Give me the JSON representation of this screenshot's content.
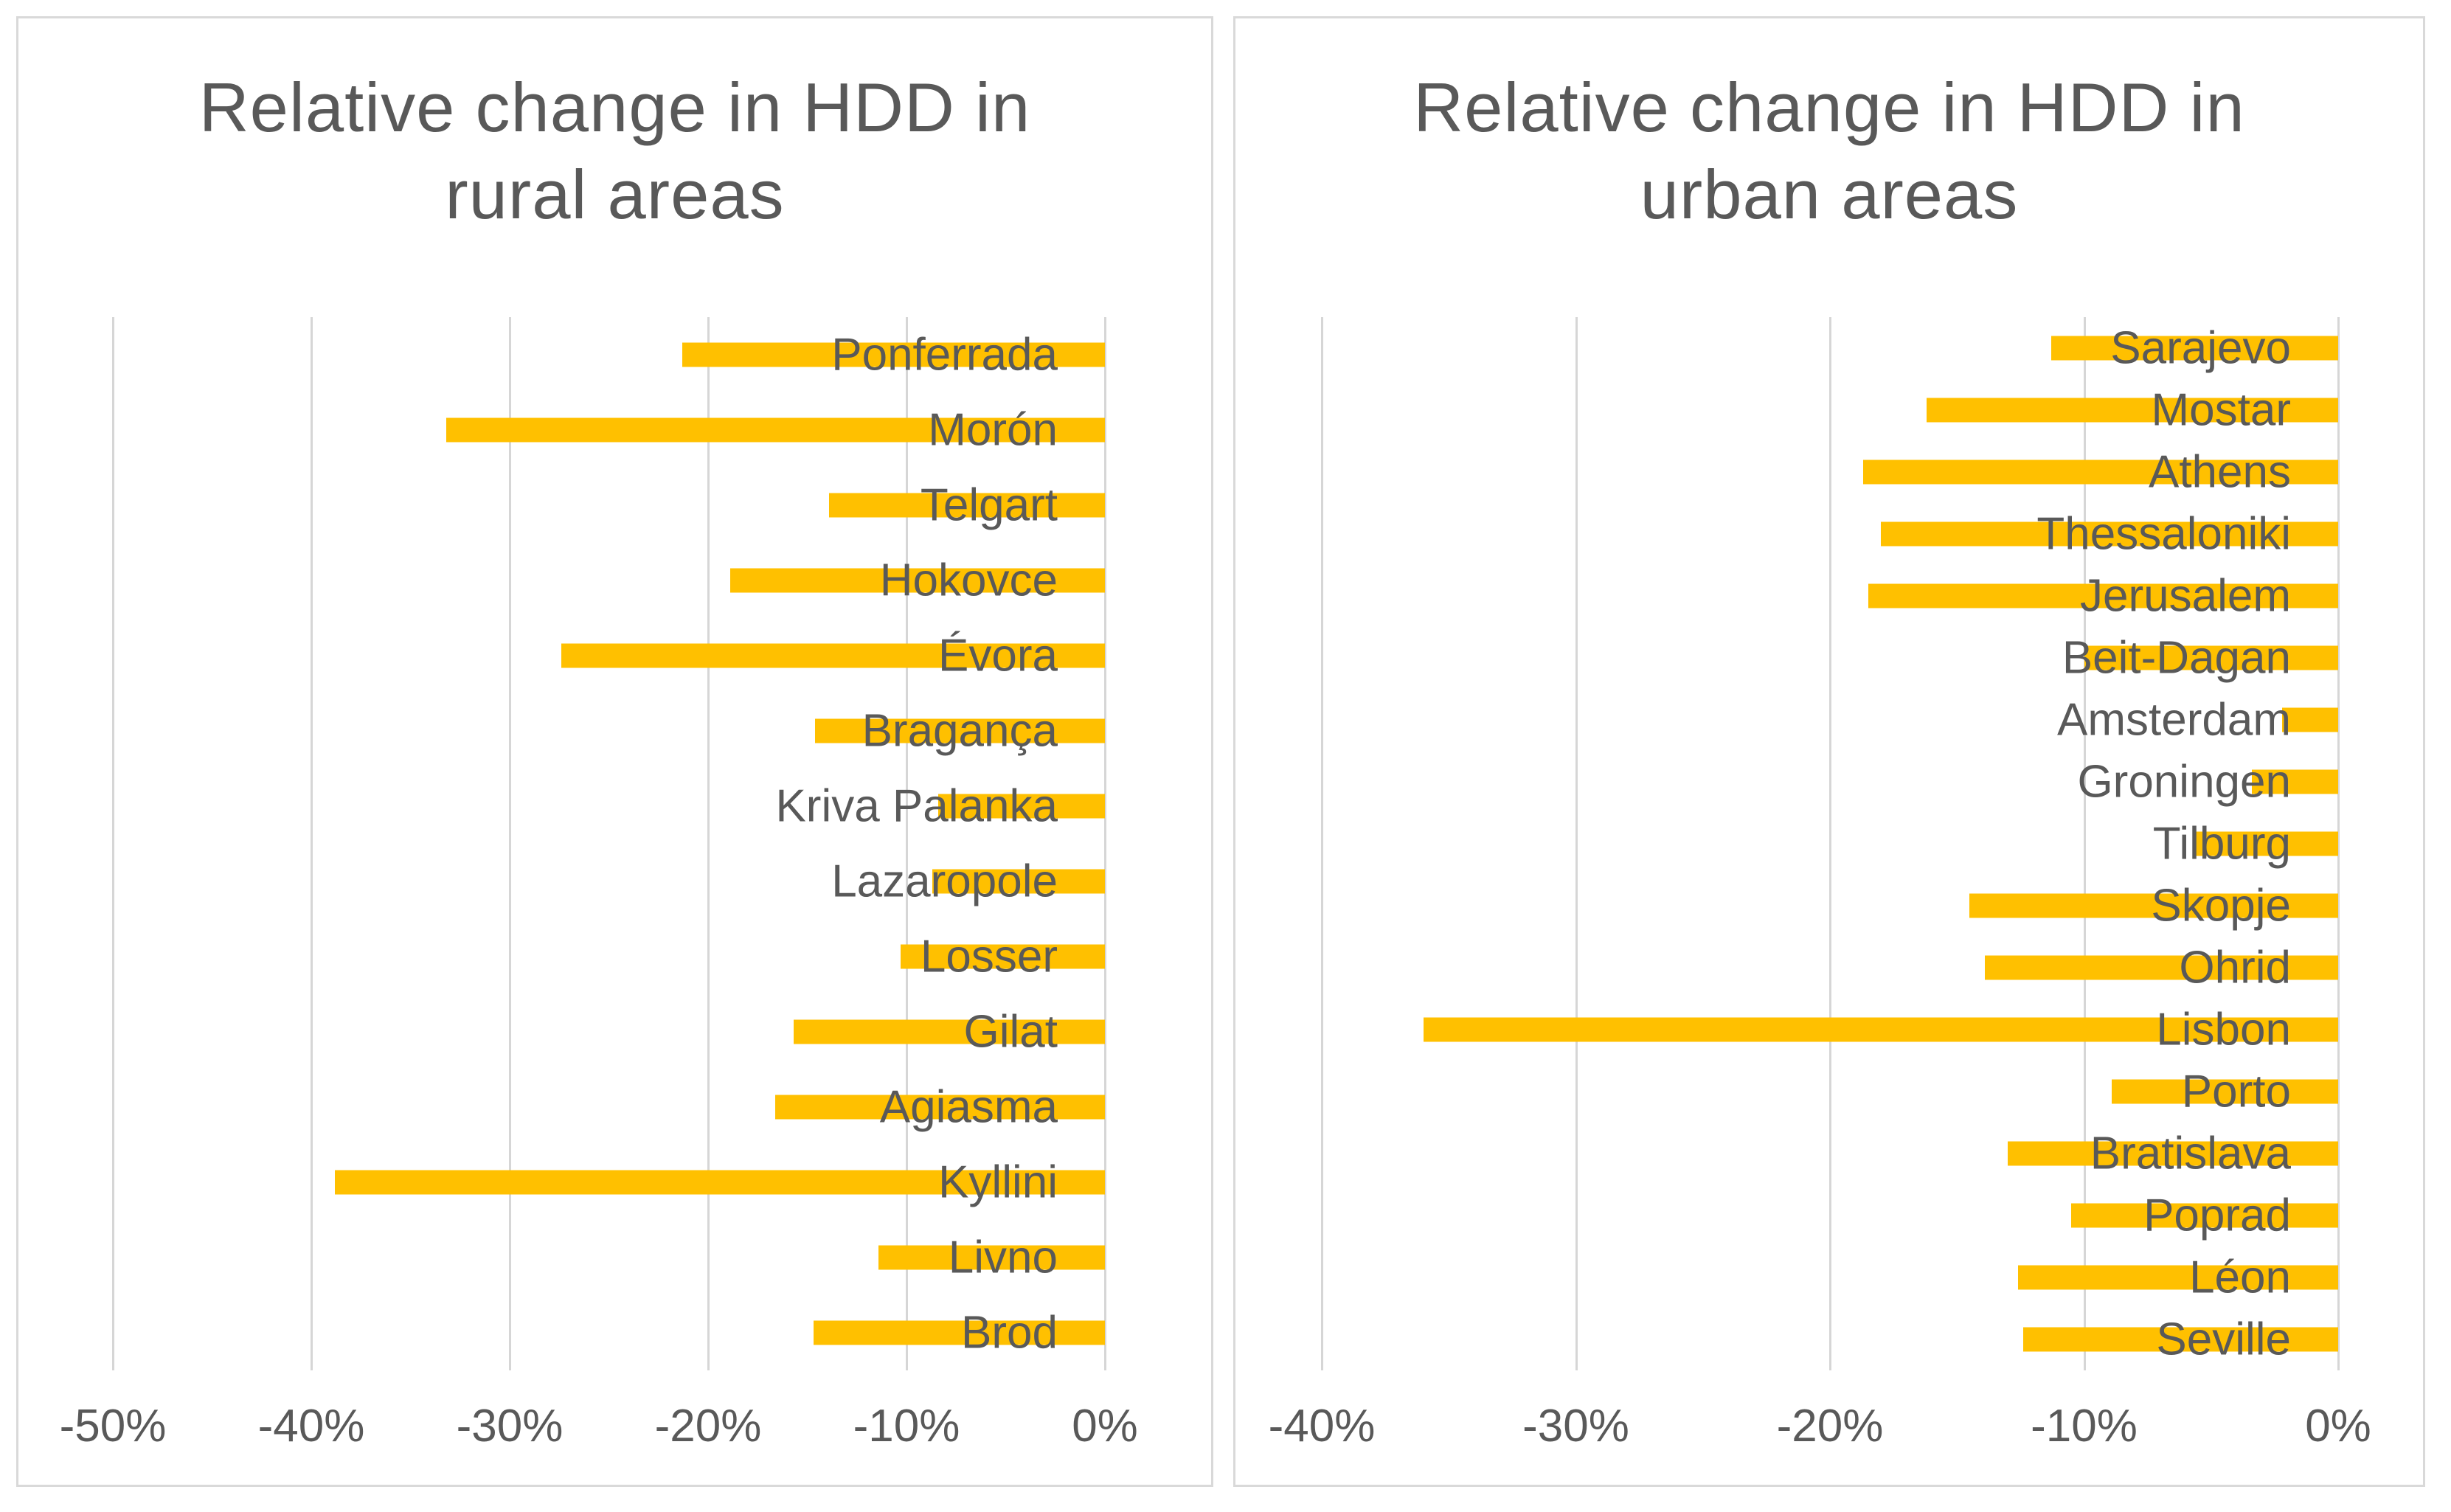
{
  "colors": {
    "bar": "#FFC000",
    "text": "#595959",
    "gridline": "#D6D6D6",
    "panel_border": "#D9D9D9",
    "background": "#FFFFFF"
  },
  "chart_data": [
    {
      "type": "bar",
      "orientation": "horizontal",
      "title": "Relative change in HDD in rural areas",
      "title_lines": [
        "Relative change in HDD in",
        "rural areas"
      ],
      "categories": [
        "Ponferrada",
        "Morón",
        "Telgart",
        "Hokovce",
        "Évora",
        "Bragança",
        "Kriva Palanka",
        "Lazaropole",
        "Losser",
        "Gilat",
        "Agiasma",
        "Kyllini",
        "Livno",
        "Brod"
      ],
      "values": [
        -21.3,
        -33.2,
        -13.9,
        -18.9,
        -27.4,
        -14.6,
        -8.4,
        -8.7,
        -10.3,
        -15.7,
        -16.6,
        -38.8,
        -11.4,
        -14.7
      ],
      "unit": "%",
      "xlabel": "",
      "ylabel": "",
      "xlim": [
        -50,
        0
      ],
      "x_ticks": [
        -50,
        -40,
        -30,
        -20,
        -10,
        0
      ],
      "x_tick_labels": [
        "-50%",
        "-40%",
        "-30%",
        "-20%",
        "-10%",
        "0%"
      ],
      "grid": true,
      "legend": false,
      "bar_color": "#FFC000"
    },
    {
      "type": "bar",
      "orientation": "horizontal",
      "title": "Relative change in HDD in urban areas",
      "title_lines": [
        "Relative change in HDD in",
        "urban areas"
      ],
      "categories": [
        "Sarajevo",
        "Mostar",
        "Athens",
        "Thessaloniki",
        "Jerusalem",
        "Beit-Dagan",
        "Amsterdam",
        "Groningen",
        "Tilburg",
        "Skopje",
        "Ohrid",
        "Lisbon",
        "Porto",
        "Bratislava",
        "Poprad",
        "Léon",
        "Seville"
      ],
      "values": [
        -11.3,
        -16.2,
        -18.7,
        -18.0,
        -18.5,
        -10.0,
        -2.2,
        -3.4,
        -5.7,
        -14.5,
        -13.9,
        -36.0,
        -8.9,
        -13.0,
        -10.5,
        -12.6,
        -12.4
      ],
      "unit": "%",
      "xlabel": "",
      "ylabel": "",
      "xlim": [
        -40,
        0
      ],
      "x_ticks": [
        -40,
        -30,
        -20,
        -10,
        0
      ],
      "x_tick_labels": [
        "-40%",
        "-30%",
        "-20%",
        "-10%",
        "0%"
      ],
      "grid": true,
      "legend": false,
      "bar_color": "#FFC000"
    }
  ]
}
